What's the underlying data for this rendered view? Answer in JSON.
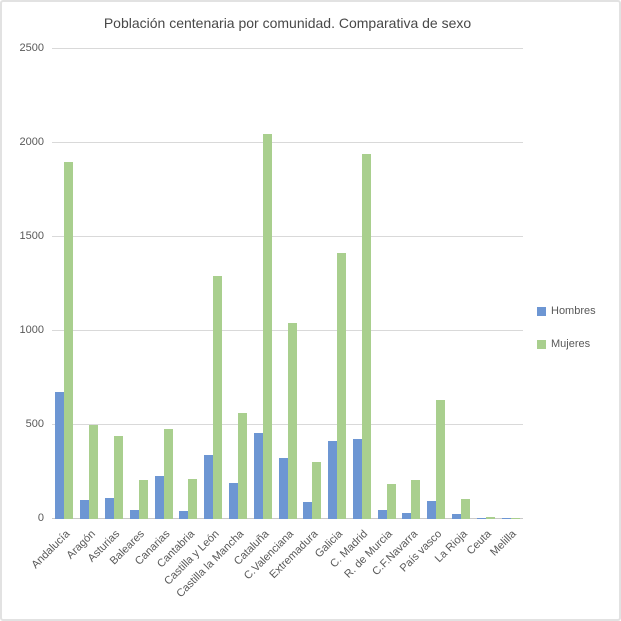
{
  "chart_data": {
    "type": "bar",
    "title": "Población centenaria por comunidad. Comparativa de sexo",
    "categories": [
      "Andalucía",
      "Aragón",
      "Asturias",
      "Baleares",
      "Canarias",
      "Cantabria",
      "Castilla y León",
      "Castilla la Mancha",
      "Cataluña",
      "C.Valenciana",
      "Extremadura",
      "Galicia",
      "C. Madrid",
      "R. de Murcia",
      "C.F.Navarra",
      "País vasco",
      "La Rioja",
      "Ceuta",
      "Melilla"
    ],
    "series": [
      {
        "name": "Hombres",
        "color": "#6d96d3",
        "values": [
          675,
          100,
          110,
          50,
          230,
          40,
          340,
          190,
          455,
          325,
          90,
          415,
          425,
          50,
          30,
          95,
          25,
          5,
          3
        ]
      },
      {
        "name": "Mujeres",
        "color": "#a9cf8e",
        "values": [
          1900,
          500,
          440,
          210,
          480,
          215,
          1290,
          565,
          2050,
          1045,
          305,
          1415,
          1940,
          185,
          205,
          635,
          105,
          12,
          6
        ]
      }
    ],
    "xlabel": "",
    "ylabel": "",
    "ylim": [
      0,
      2500
    ],
    "yticks": [
      0,
      500,
      1000,
      1500,
      2000,
      2500
    ],
    "grid": true,
    "legend_position": "right",
    "colors": {
      "grid": "#d9d9d9",
      "axis_text": "#595959",
      "title_text": "#484848",
      "frame_border": "#e2e2e2"
    }
  }
}
